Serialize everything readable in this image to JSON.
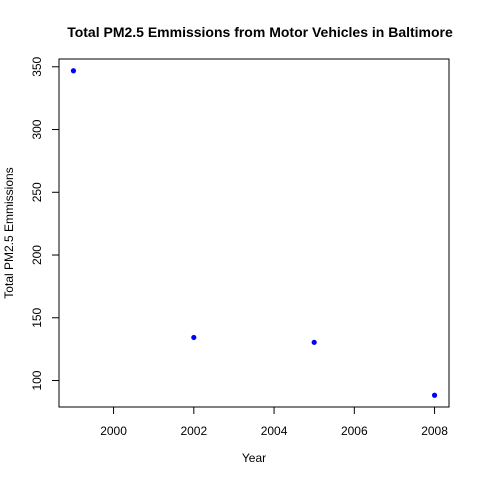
{
  "chart_data": {
    "type": "scatter",
    "title": "Total PM2.5 Emmissions from Motor Vehicles in Baltimore",
    "xlabel": "Year",
    "ylabel": "Total PM2.5 Emmissions",
    "x": [
      1999,
      2002,
      2005,
      2008
    ],
    "y": [
      346.82,
      134.31,
      130.43,
      88.28
    ],
    "xlim": [
      1998.64,
      2008.36
    ],
    "ylim": [
      78.9,
      356.2
    ],
    "xticks": [
      2000,
      2002,
      2004,
      2006,
      2008
    ],
    "yticks": [
      100,
      150,
      200,
      250,
      300,
      350
    ],
    "point_color": "#0000ff",
    "grid": false,
    "legend": "none"
  }
}
